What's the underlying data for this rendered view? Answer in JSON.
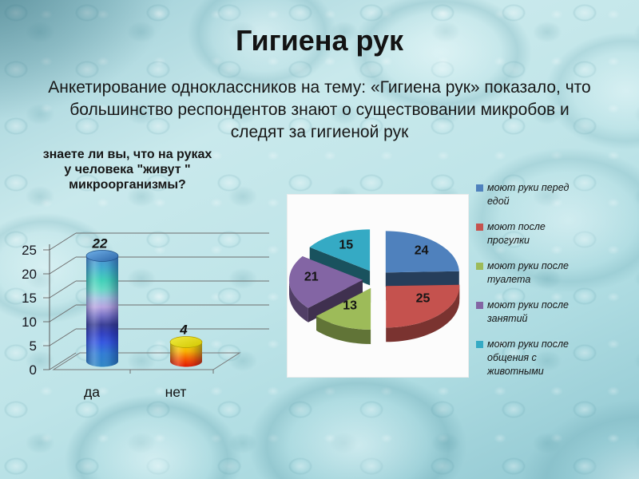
{
  "slide": {
    "title": "Гигиена рук",
    "subtitle": "Анкетирование одноклассников на тему: «Гигиена рук» показало, что большинство респондентов знают о существовании микробов и следят за гигиеной рук",
    "subtitle_lines": [
      "Анкетирование одноклассников на тему: «Гигиена рук» показало, что",
      "большинство респондентов знают о существовании микробов и",
      "следят за гигиеной рук"
    ]
  },
  "chart_data": [
    {
      "type": "bar",
      "style": "3d-cylinder",
      "title": "знаете ли вы, что на руках у человека \"живут \" микроорганизмы?",
      "title_lines": [
        "знаете ли вы, что на руках",
        "у человека \"живут \"",
        "микроорганизмы?"
      ],
      "categories": [
        "да",
        "нет"
      ],
      "values": [
        22,
        4
      ],
      "value_labels": [
        "22",
        "4"
      ],
      "ylim": [
        0,
        25
      ],
      "yticks": [
        0,
        5,
        10,
        15,
        20,
        25
      ],
      "grid": true,
      "bar_styles": [
        "blue-teal-lavender-navy gradient cylinder",
        "yellow-orange-red gradient cylinder"
      ]
    },
    {
      "type": "pie",
      "style": "3d-exploded",
      "values": [
        24,
        25,
        13,
        21,
        15
      ],
      "labels": [
        "моют руки перед едой",
        "моют после прогулки",
        "моют руки после туалета",
        "моют руки после занятий",
        "моют руки после общения с животными"
      ],
      "colors": [
        "#4F81BD",
        "#C5524E",
        "#9DBB59",
        "#8365A4",
        "#35AAC4"
      ],
      "start_angle_deg": 90,
      "direction": "clockwise",
      "legend_position": "right",
      "background": "#fcfcfc"
    }
  ],
  "theme": {
    "background_style": "light teal water droplets texture",
    "accent_dark_corner": "#2a6673",
    "text_color": "#161616"
  }
}
